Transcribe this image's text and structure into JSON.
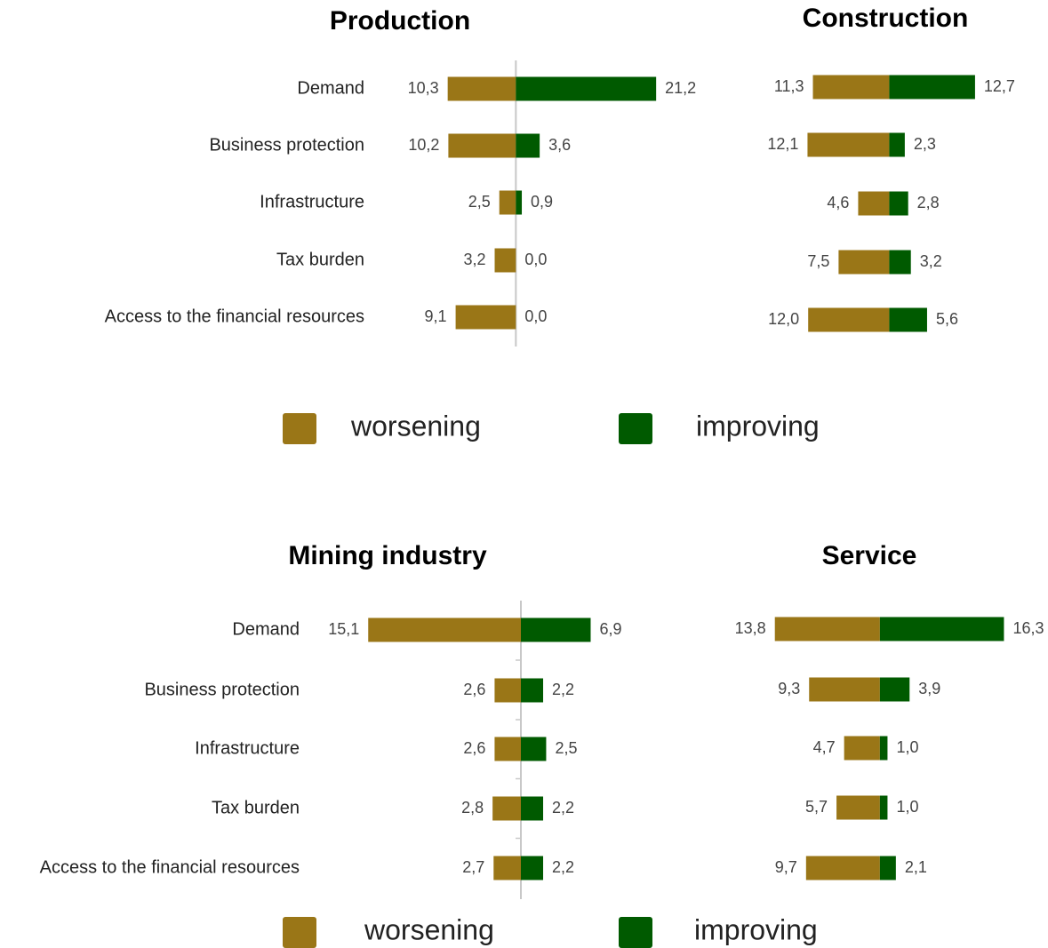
{
  "chart_data": [
    {
      "type": "diverging_bar",
      "title": "Production",
      "categories": [
        "Demand",
        "Business protection",
        "Infrastructure",
        "Tax burden",
        "Access to the financial resources"
      ],
      "series": [
        {
          "name": "worsening",
          "color": "#9a7617",
          "values": [
            10.3,
            10.2,
            2.5,
            3.2,
            9.1
          ],
          "value_labels": [
            "10,3",
            "10,2",
            "2,5",
            "3,2",
            "9,1"
          ]
        },
        {
          "name": "improving",
          "color": "#005a00",
          "values": [
            21.2,
            3.6,
            0.9,
            0.0,
            0.0
          ],
          "value_labels": [
            "21,2",
            "3,6",
            "0,9",
            "0,0",
            "0,0"
          ]
        }
      ],
      "xlim": [
        -12,
        24
      ],
      "axis_line": true,
      "legend": true
    },
    {
      "type": "diverging_bar",
      "title": "Construction",
      "categories": [
        null,
        null,
        null,
        null,
        null
      ],
      "series": [
        {
          "name": "worsening",
          "color": "#9a7617",
          "values": [
            11.3,
            12.1,
            4.6,
            7.5,
            12.0
          ],
          "value_labels": [
            "11,3",
            "12,1",
            "4,6",
            "7,5",
            "12,0"
          ]
        },
        {
          "name": "improving",
          "color": "#005a00",
          "values": [
            12.7,
            2.3,
            2.8,
            3.2,
            5.6
          ],
          "value_labels": [
            "12,7",
            "2,3",
            "2,8",
            "3,2",
            "5,6"
          ]
        }
      ],
      "xlim": [
        -14,
        16
      ]
    },
    {
      "type": "diverging_bar",
      "title": "Mining industry",
      "categories": [
        "Demand",
        "Business protection",
        "Infrastructure",
        "Tax burden",
        "Access to the financial resources"
      ],
      "series": [
        {
          "name": "worsening",
          "color": "#9a7617",
          "values": [
            15.1,
            2.6,
            2.6,
            2.8,
            2.7
          ],
          "value_labels": [
            "15,1",
            "2,6",
            "2,6",
            "2,8",
            "2,7"
          ]
        },
        {
          "name": "improving",
          "color": "#005a00",
          "values": [
            6.9,
            2.2,
            2.5,
            2.2,
            2.2
          ],
          "value_labels": [
            "6,9",
            "2,2",
            "2,5",
            "2,2",
            "2,2"
          ]
        }
      ],
      "xlim": [
        -16,
        8
      ],
      "axis_line": true,
      "legend": true
    },
    {
      "type": "diverging_bar",
      "title": "Service",
      "categories": [
        null,
        null,
        null,
        null,
        null
      ],
      "series": [
        {
          "name": "worsening",
          "color": "#9a7617",
          "values": [
            13.8,
            9.3,
            4.7,
            5.7,
            9.7
          ],
          "value_labels": [
            "13,8",
            "9,3",
            "4,7",
            "5,7",
            "9,7"
          ]
        },
        {
          "name": "improving",
          "color": "#005a00",
          "values": [
            16.3,
            3.9,
            1.0,
            1.0,
            2.1
          ],
          "value_labels": [
            "16,3",
            "3,9",
            "1,0",
            "1,0",
            "2,1"
          ]
        }
      ],
      "xlim": [
        -14,
        18
      ]
    }
  ]
}
